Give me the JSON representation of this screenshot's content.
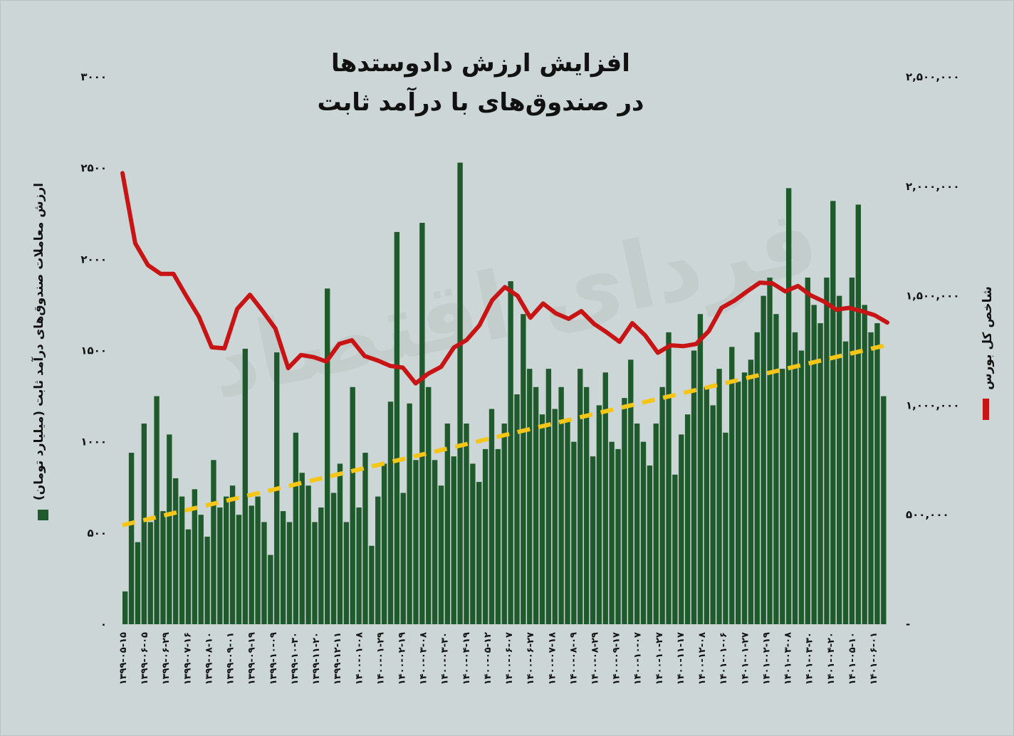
{
  "chart_data": {
    "type": "bar+line",
    "title": [
      "افزایش ارزش دادوستدها",
      "در صندوق‌های با درآمد ثابت"
    ],
    "watermark": "فردای اقتصاد",
    "ylabel_left": "ارزش معاملات صندوق‌های درآمد ثابت (میلیارد تومان)",
    "ylabel_right": "شاخص کل بورس",
    "ylim_left": [
      0,
      3000
    ],
    "ylim_right": [
      0,
      2500000
    ],
    "yticks_left": [
      "۰",
      "۵۰۰",
      "۱۰۰۰",
      "۱۵۰۰",
      "۲۰۰۰",
      "۲۵۰۰",
      "۳۰۰۰"
    ],
    "yticks_right": [
      "-",
      "۵۰۰,۰۰۰",
      "۱,۰۰۰,۰۰۰",
      "۱,۵۰۰,۰۰۰",
      "۲,۰۰۰,۰۰۰",
      "۲,۵۰۰,۰۰۰"
    ],
    "x_tick_labels": [
      "۱۳۹۹-۰۵-۱۵",
      "۱۳۹۹-۰۶-۰۵",
      "۱۳۹۹-۰۶-۲۹",
      "۱۳۹۹-۰۷-۱۶",
      "۱۳۹۹-۰۸-۱۰",
      "۱۳۹۹-۰۹-۰۱",
      "۱۳۹۹-۰۹-۱۹",
      "۱۳۹۹-۱۰-۰۹",
      "۱۳۹۹-۱۰-۳۰",
      "۱۳۹۹-۱۱-۲۰",
      "۱۳۹۹-۱۲-۱۱",
      "۱۴۰۰-۰۱-۰۸",
      "۱۴۰۰-۰۱-۲۹",
      "۱۴۰۰-۰۲-۱۹",
      "۱۴۰۰-۰۳-۰۸",
      "۱۴۰۰-۰۳-۳۰",
      "۱۴۰۰-۰۴-۱۹",
      "۱۴۰۰-۰۵-۱۲",
      "۱۴۰۰-۰۶-۰۷",
      "۱۴۰۰-۰۶-۲۷",
      "۱۴۰۰-۰۷-۱۸",
      "۱۴۰۰-۰۸-۰۹",
      "۱۴۰۰-۰۸-۲۹",
      "۱۴۰۰-۰۹-۱۷",
      "۱۴۰۰-۱۰-۰۷",
      "۱۴۰۰-۱۰-۲۷",
      "۱۴۰۰-۱۱-۱۷",
      "۱۴۰۰-۱۲-۰۸",
      "۱۴۰۱-۰۱-۰۶",
      "۱۴۰۱-۰۱-۲۷",
      "۱۴۰۱-۰۲-۱۹",
      "۱۴۰۱-۰۳-۰۸",
      "۱۴۰۱-۰۳-۳۰",
      "۱۴۰۱-۰۴-۲۰",
      "۱۴۰۱-۰۵-۱۰",
      "۱۴۰۱-۰۶-۰۱"
    ],
    "series": [
      {
        "name": "ارزش معاملات صندوق‌های درآمد ثابت",
        "type": "bar",
        "axis": "left",
        "color": "#1f5a2c",
        "values": [
          180,
          940,
          450,
          1100,
          560,
          1250,
          620,
          1040,
          800,
          700,
          520,
          740,
          600,
          480,
          900,
          640,
          700,
          760,
          600,
          1510,
          650,
          700,
          560,
          380,
          1490,
          620,
          560,
          1050,
          830,
          760,
          560,
          640,
          1840,
          720,
          880,
          560,
          1300,
          640,
          940,
          430,
          700,
          880,
          1220,
          2150,
          720,
          1210,
          900,
          2200,
          1300,
          900,
          760,
          1100,
          920,
          2530,
          1100,
          880,
          780,
          960,
          1180,
          960,
          1100,
          1880,
          1260,
          1700,
          1400,
          1300,
          1150,
          1400,
          1180,
          1300,
          1120,
          1000,
          1400,
          1300,
          920,
          1200,
          1380,
          1000,
          960,
          1240,
          1450,
          1100,
          1000,
          870,
          1100,
          1300,
          1600,
          820,
          1040,
          1150,
          1500,
          1700,
          1300,
          1200,
          1400,
          1050,
          1520,
          1330,
          1380,
          1450,
          1600,
          1800,
          1900,
          1700,
          1400,
          2390,
          1600,
          1500,
          1900,
          1750,
          1650,
          1900,
          2320,
          1800,
          1550,
          1900,
          2300,
          1750,
          1600,
          1650,
          1250
        ]
      },
      {
        "name": "شاخص کل بورس",
        "type": "line",
        "axis": "right",
        "color": "#c81414",
        "values": [
          2060000,
          1740000,
          1640000,
          1600000,
          1600000,
          1500000,
          1404000,
          1265000,
          1260000,
          1440000,
          1505000,
          1430000,
          1350000,
          1170000,
          1230000,
          1220000,
          1200000,
          1280000,
          1297000,
          1225000,
          1205000,
          1180000,
          1172000,
          1100000,
          1145000,
          1176000,
          1264000,
          1298000,
          1365000,
          1480000,
          1540000,
          1500000,
          1400000,
          1465000,
          1420000,
          1395000,
          1430000,
          1372000,
          1333000,
          1290000,
          1375000,
          1320000,
          1240000,
          1274000,
          1270000,
          1280000,
          1339000,
          1445000,
          1478000,
          1520000,
          1560000,
          1557000,
          1520000,
          1545000,
          1502000,
          1475000,
          1437000,
          1445000,
          1430000,
          1412000,
          1378000
        ]
      },
      {
        "name": "روند",
        "type": "trendline",
        "axis": "left",
        "color": "#f5c518",
        "values": [
          543,
          1531
        ]
      }
    ],
    "legend": "axis-titles"
  }
}
